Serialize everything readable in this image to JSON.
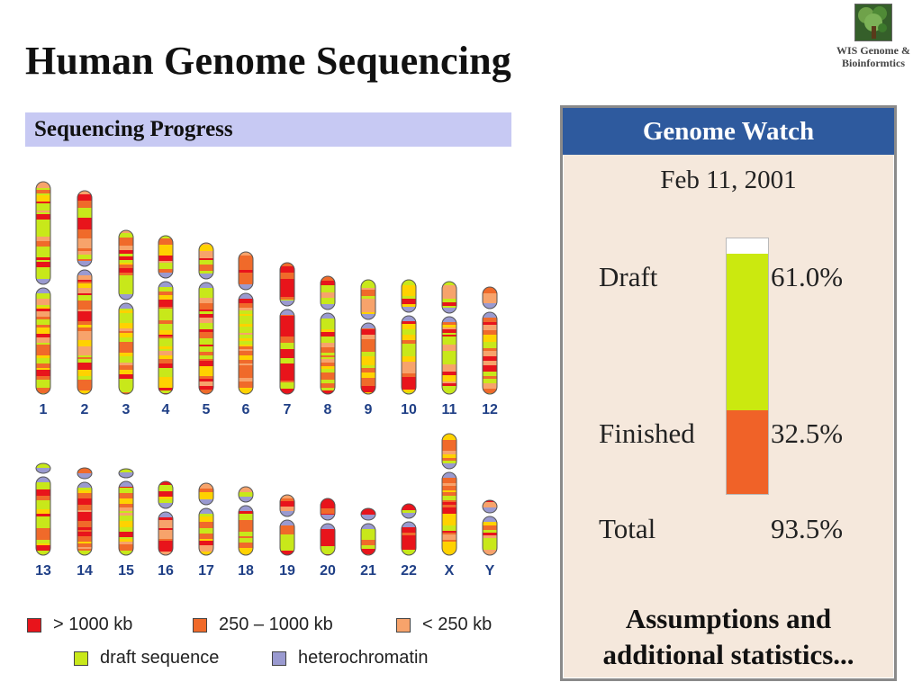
{
  "title": "Human Genome Sequencing",
  "logo": {
    "line1": "WIS Genome &",
    "line2": "Bioinformtics"
  },
  "progress": {
    "header": "Sequencing Progress",
    "chromosomes": [
      {
        "label": "1"
      },
      {
        "label": "2"
      },
      {
        "label": "3"
      },
      {
        "label": "4"
      },
      {
        "label": "5"
      },
      {
        "label": "6"
      },
      {
        "label": "7"
      },
      {
        "label": "8"
      },
      {
        "label": "9"
      },
      {
        "label": "10"
      },
      {
        "label": "11"
      },
      {
        "label": "12"
      },
      {
        "label": "13"
      },
      {
        "label": "14"
      },
      {
        "label": "15"
      },
      {
        "label": "16"
      },
      {
        "label": "17"
      },
      {
        "label": "18"
      },
      {
        "label": "19"
      },
      {
        "label": "20"
      },
      {
        "label": "21"
      },
      {
        "label": "22"
      },
      {
        "label": "X"
      },
      {
        "label": "Y"
      }
    ]
  },
  "legend": [
    {
      "label": "> 1000 kb",
      "color": "#e8141b"
    },
    {
      "label": "250 – 1000 kb",
      "color": "#f06a2a"
    },
    {
      "label": "< 250 kb",
      "color": "#f7a36b"
    },
    {
      "label": "draft sequence",
      "color": "#c8e81a"
    },
    {
      "label": "heterochromatin",
      "color": "#9a9ad0"
    }
  ],
  "genome_watch": {
    "header": "Genome Watch",
    "date": "Feb 11, 2001",
    "draft_label": "Draft",
    "draft_value": "61.0%",
    "finished_label": "Finished",
    "finished_value": "32.5%",
    "total_label": "Total",
    "total_value": "93.5%",
    "draft_percent": 61.0,
    "finished_percent": 32.5,
    "total_percent": 93.5,
    "draft_color": "#cbe90f",
    "finished_color": "#f06228",
    "footer_line1": "Assumptions and",
    "footer_line2": "additional statistics..."
  }
}
